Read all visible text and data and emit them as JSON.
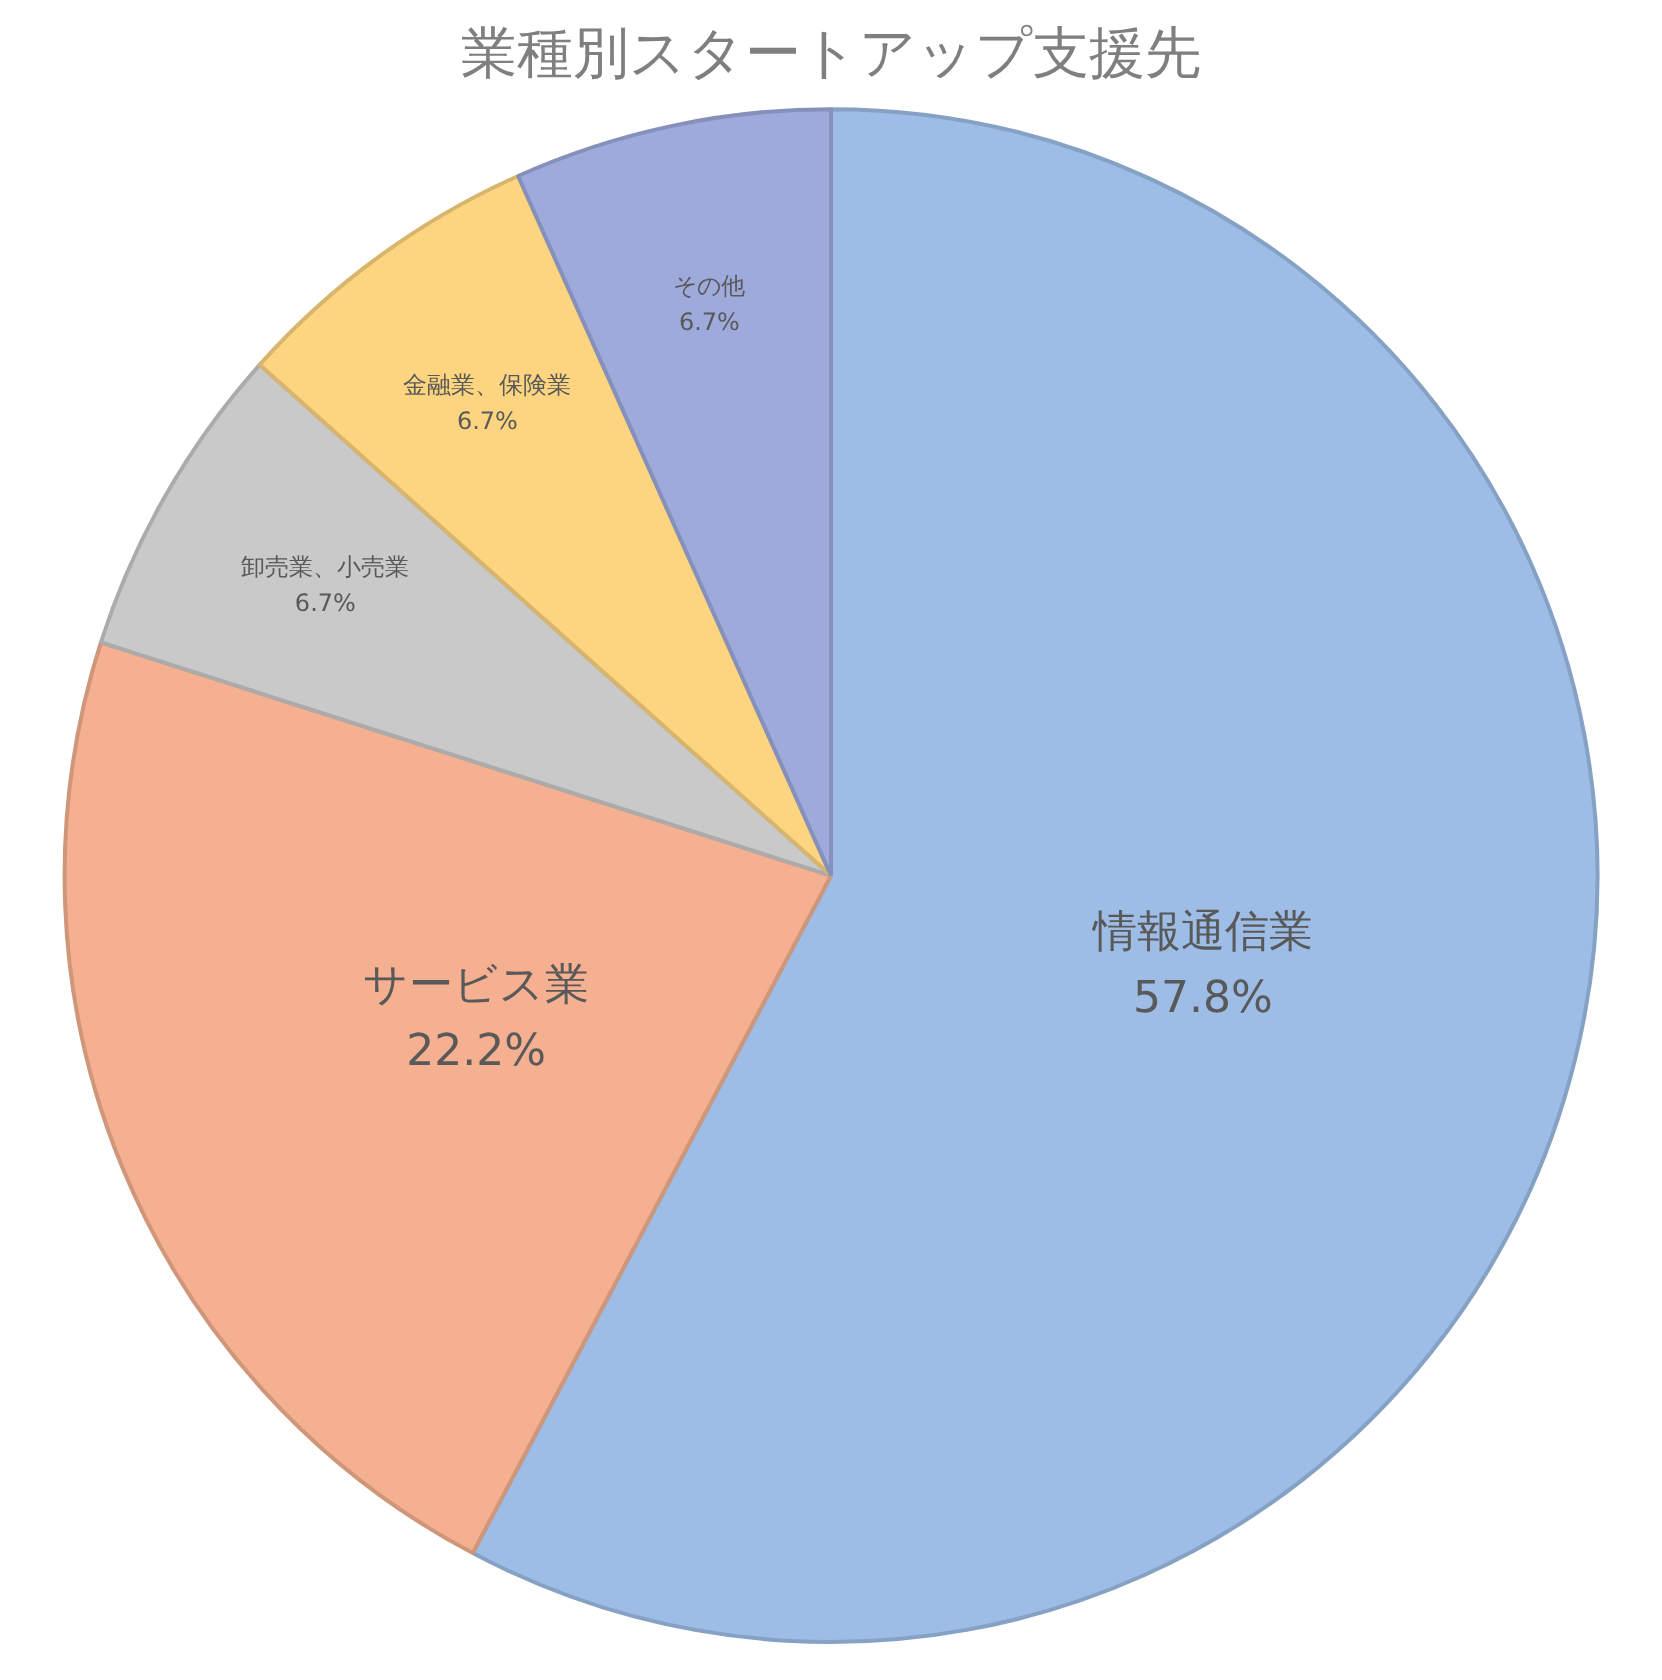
{
  "chart_data": {
    "type": "pie",
    "title": "業種別スタートアップ支援先",
    "categories": [
      "情報通信業",
      "サービス業",
      "卸売業、小売業",
      "金融業、保険業",
      "その他"
    ],
    "values": [
      57.8,
      22.2,
      6.7,
      6.7,
      6.7
    ],
    "value_labels": [
      "57.8%",
      "22.2%",
      "6.7%",
      "6.7%",
      "6.7%"
    ],
    "colors": [
      "#9dbde6",
      "#f4b090",
      "#c9c9c9",
      "#fdd580",
      "#9eaadc"
    ],
    "legend": false
  }
}
